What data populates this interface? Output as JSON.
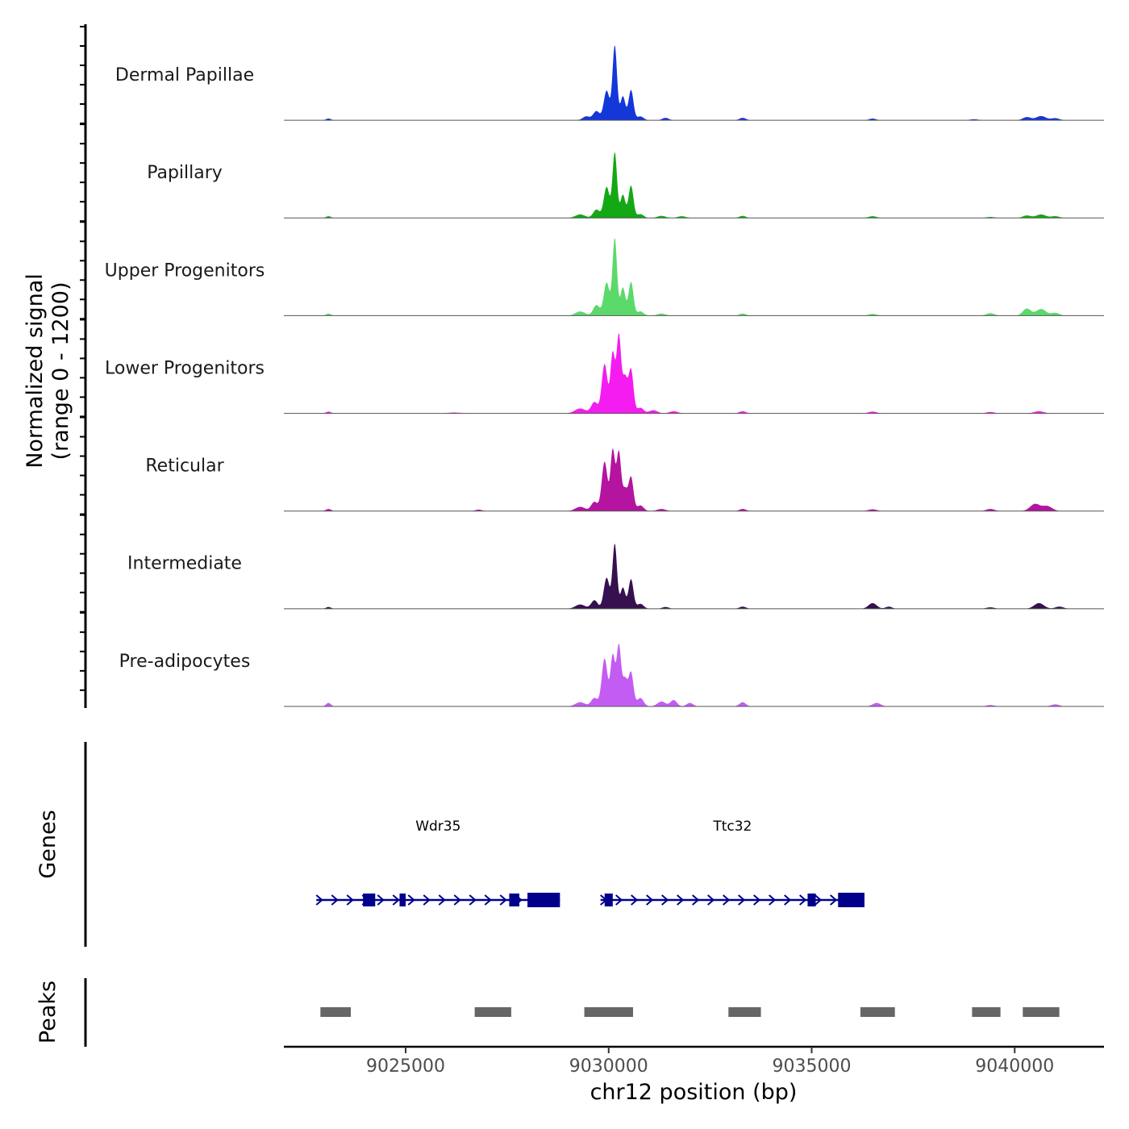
{
  "chart_data": {
    "type": "area",
    "title": "",
    "chromosome": "chr12",
    "xlabel": "chr12 position (bp)",
    "ylabel_line1": "Normalized signal",
    "ylabel_line2": "(range 0 - 1200)",
    "signal_range": [
      0,
      1200
    ],
    "xlim": [
      9022000,
      9042200
    ],
    "x_ticks": [
      9025000,
      9030000,
      9035000,
      9040000
    ],
    "x_tick_labels": [
      "9025000",
      "9030000",
      "9035000",
      "9040000"
    ],
    "genes_panel_label": "Genes",
    "peaks_panel_label": "Peaks",
    "series": [
      {
        "name": "Dermal Papillae",
        "color": "#1437d9",
        "peaks": [
          [
            9023100,
            25,
            60
          ],
          [
            9029450,
            55,
            90
          ],
          [
            9029700,
            130,
            80
          ],
          [
            9029950,
            420,
            70
          ],
          [
            9030150,
            1060,
            55
          ],
          [
            9030350,
            340,
            60
          ],
          [
            9030550,
            430,
            60
          ],
          [
            9030780,
            55,
            80
          ],
          [
            9031400,
            35,
            80
          ],
          [
            9033300,
            35,
            80
          ],
          [
            9036500,
            25,
            80
          ],
          [
            9039000,
            15,
            100
          ],
          [
            9040300,
            45,
            100
          ],
          [
            9040650,
            60,
            120
          ],
          [
            9041000,
            30,
            100
          ]
        ]
      },
      {
        "name": "Papillary",
        "color": "#14a814",
        "peaks": [
          [
            9023100,
            25,
            60
          ],
          [
            9029300,
            50,
            120
          ],
          [
            9029700,
            120,
            80
          ],
          [
            9029950,
            440,
            70
          ],
          [
            9030150,
            930,
            55
          ],
          [
            9030350,
            330,
            60
          ],
          [
            9030550,
            460,
            60
          ],
          [
            9030780,
            55,
            80
          ],
          [
            9031300,
            30,
            100
          ],
          [
            9031800,
            25,
            100
          ],
          [
            9033300,
            30,
            80
          ],
          [
            9036500,
            25,
            100
          ],
          [
            9039400,
            15,
            100
          ],
          [
            9040300,
            35,
            100
          ],
          [
            9040650,
            50,
            120
          ],
          [
            9041000,
            25,
            100
          ]
        ]
      },
      {
        "name": "Upper Progenitors",
        "color": "#5cd96b",
        "peaks": [
          [
            9023100,
            30,
            60
          ],
          [
            9029300,
            60,
            120
          ],
          [
            9029700,
            150,
            80
          ],
          [
            9029950,
            470,
            70
          ],
          [
            9030150,
            1100,
            55
          ],
          [
            9030350,
            400,
            60
          ],
          [
            9030550,
            480,
            60
          ],
          [
            9030780,
            60,
            80
          ],
          [
            9031300,
            30,
            100
          ],
          [
            9033300,
            30,
            80
          ],
          [
            9036500,
            25,
            100
          ],
          [
            9039400,
            35,
            100
          ],
          [
            9040300,
            100,
            100
          ],
          [
            9040650,
            95,
            120
          ],
          [
            9041000,
            40,
            100
          ]
        ]
      },
      {
        "name": "Lower Progenitors",
        "color": "#f41cf0",
        "peaks": [
          [
            9023100,
            25,
            60
          ],
          [
            9026200,
            12,
            150
          ],
          [
            9029300,
            70,
            130
          ],
          [
            9029650,
            160,
            80
          ],
          [
            9029900,
            700,
            70
          ],
          [
            9030100,
            850,
            55
          ],
          [
            9030250,
            1100,
            55
          ],
          [
            9030400,
            500,
            60
          ],
          [
            9030550,
            620,
            60
          ],
          [
            9030780,
            80,
            80
          ],
          [
            9031100,
            45,
            100
          ],
          [
            9031600,
            30,
            100
          ],
          [
            9033300,
            30,
            80
          ],
          [
            9036500,
            25,
            100
          ],
          [
            9039400,
            20,
            100
          ],
          [
            9040600,
            30,
            120
          ]
        ]
      },
      {
        "name": "Reticular",
        "color": "#b4149f",
        "peaks": [
          [
            9023100,
            30,
            60
          ],
          [
            9026800,
            20,
            80
          ],
          [
            9029300,
            60,
            120
          ],
          [
            9029650,
            130,
            80
          ],
          [
            9029900,
            700,
            70
          ],
          [
            9030100,
            860,
            55
          ],
          [
            9030250,
            830,
            55
          ],
          [
            9030400,
            300,
            60
          ],
          [
            9030550,
            480,
            60
          ],
          [
            9030780,
            80,
            80
          ],
          [
            9031300,
            30,
            100
          ],
          [
            9033300,
            30,
            80
          ],
          [
            9036500,
            25,
            100
          ],
          [
            9039400,
            30,
            100
          ],
          [
            9040500,
            100,
            120
          ],
          [
            9040800,
            70,
            120
          ]
        ]
      },
      {
        "name": "Intermediate",
        "color": "#36104f",
        "peaks": [
          [
            9023100,
            25,
            60
          ],
          [
            9029300,
            60,
            120
          ],
          [
            9029650,
            120,
            80
          ],
          [
            9029950,
            440,
            70
          ],
          [
            9030150,
            920,
            55
          ],
          [
            9030350,
            300,
            60
          ],
          [
            9030550,
            420,
            60
          ],
          [
            9030780,
            70,
            80
          ],
          [
            9031400,
            25,
            80
          ],
          [
            9033300,
            30,
            80
          ],
          [
            9036500,
            80,
            100
          ],
          [
            9036900,
            30,
            80
          ],
          [
            9039400,
            20,
            100
          ],
          [
            9040600,
            80,
            120
          ],
          [
            9041100,
            30,
            100
          ]
        ]
      },
      {
        "name": "Pre-adipocytes",
        "color": "#c35cf2",
        "peaks": [
          [
            9023100,
            50,
            60
          ],
          [
            9029300,
            60,
            120
          ],
          [
            9029650,
            120,
            80
          ],
          [
            9029900,
            680,
            70
          ],
          [
            9030100,
            720,
            55
          ],
          [
            9030250,
            860,
            55
          ],
          [
            9030400,
            380,
            60
          ],
          [
            9030550,
            480,
            60
          ],
          [
            9030780,
            120,
            80
          ],
          [
            9031300,
            70,
            100
          ],
          [
            9031600,
            90,
            80
          ],
          [
            9032000,
            50,
            80
          ],
          [
            9033300,
            60,
            80
          ],
          [
            9036600,
            50,
            100
          ],
          [
            9039400,
            20,
            100
          ],
          [
            9041000,
            30,
            100
          ]
        ]
      }
    ],
    "genes": [
      {
        "name": "Wdr35",
        "strand": "+",
        "start": 9022800,
        "end": 9028800,
        "exons": [
          [
            9023950,
            9024250,
            "small"
          ],
          [
            9024850,
            9025000,
            "small"
          ],
          [
            9027550,
            9027800,
            "small"
          ],
          [
            9028000,
            9028800,
            "big"
          ]
        ]
      },
      {
        "name": "Ttc32",
        "strand": "+",
        "start": 9029800,
        "end": 9036300,
        "exons": [
          [
            9029900,
            9030100,
            "small"
          ],
          [
            9034900,
            9035100,
            "small"
          ],
          [
            9035650,
            9036300,
            "big"
          ]
        ]
      }
    ],
    "peaks_regions": [
      [
        9022900,
        9023650
      ],
      [
        9026700,
        9027600
      ],
      [
        9029400,
        9030600
      ],
      [
        9032950,
        9033750
      ],
      [
        9036200,
        9037050
      ],
      [
        9038950,
        9039650
      ],
      [
        9040200,
        9041100
      ]
    ]
  }
}
